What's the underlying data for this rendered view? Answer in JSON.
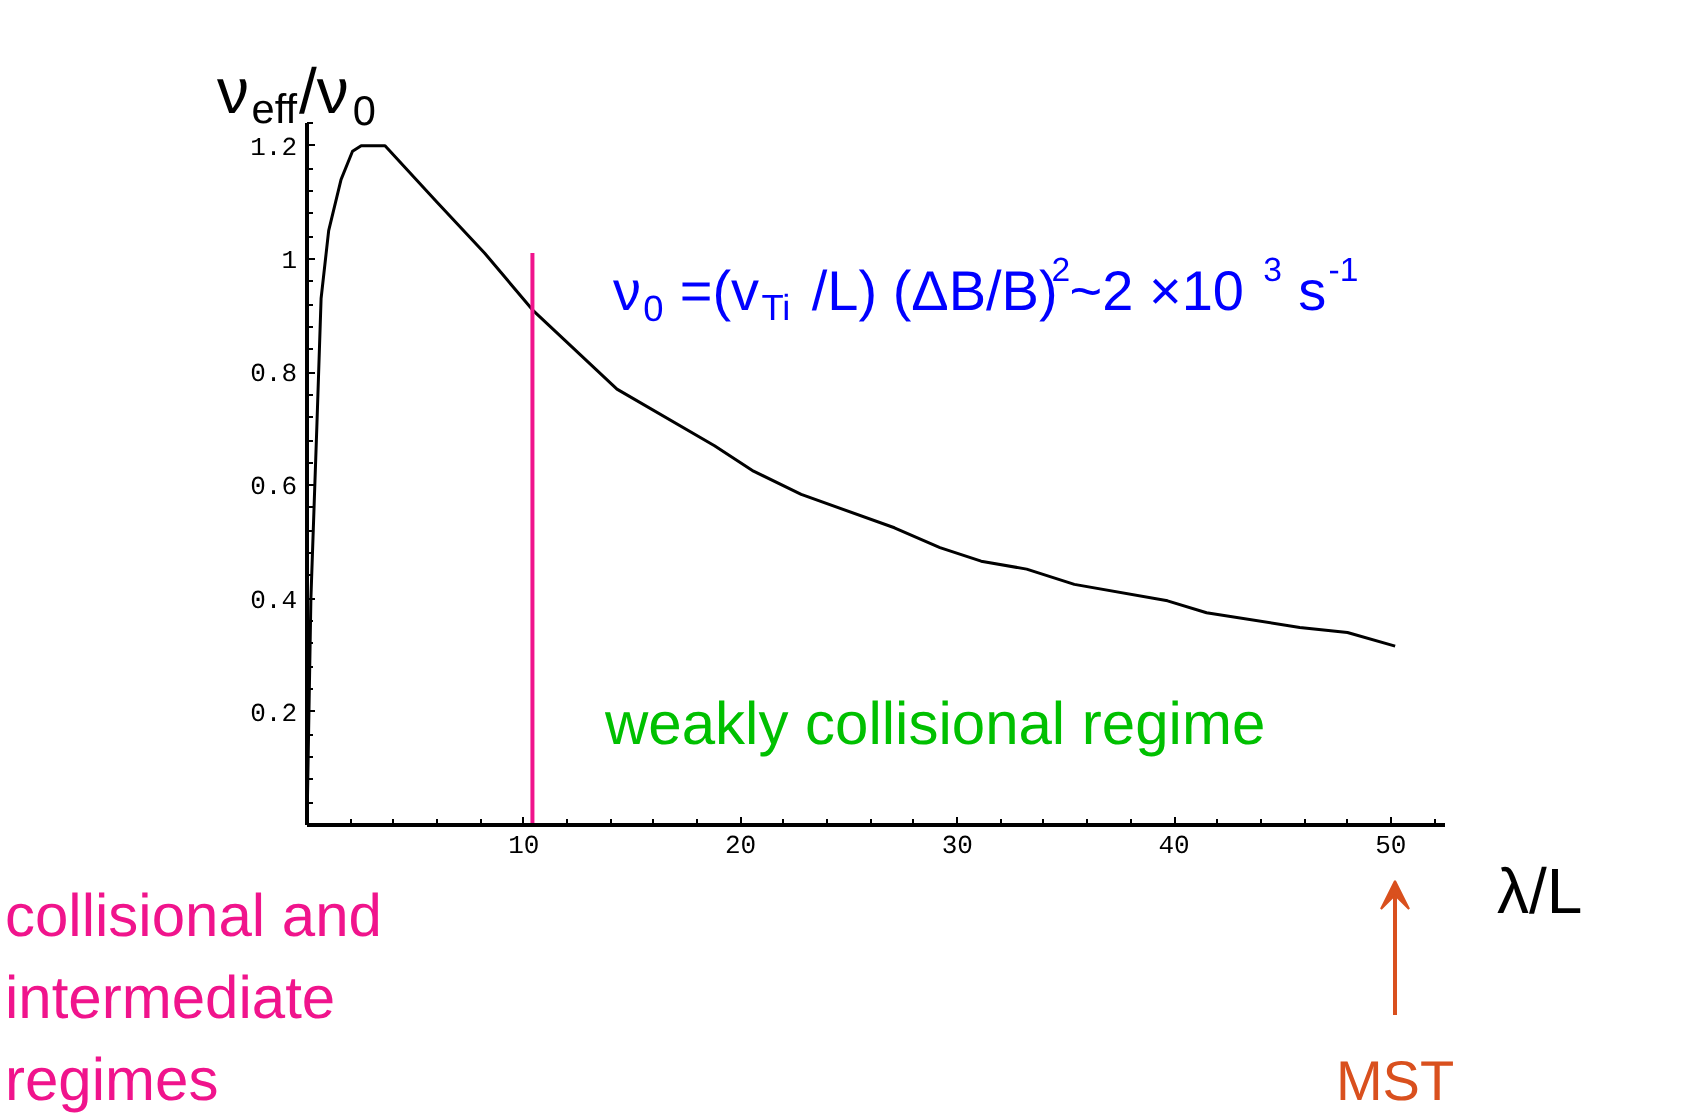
{
  "chart_data": {
    "type": "line",
    "ylabel": "ν$_{eff}$/ν$_{0}$",
    "xlabel": "λ/L",
    "x": [
      0,
      0.18,
      0.46,
      0.65,
      1.0,
      1.57,
      2.1,
      2.5,
      3.6,
      6.0,
      8.2,
      10.4,
      14.3,
      18.8,
      20.6,
      22.8,
      27.1,
      29.2,
      31.1,
      33.2,
      35.4,
      39.7,
      41.5,
      45.8,
      48.0,
      50.2
    ],
    "series": [
      {
        "color": "#000000",
        "values": [
          0,
          0.4,
          0.71,
          0.93,
          1.05,
          1.14,
          1.19,
          1.2,
          1.2,
          1.1,
          1.01,
          0.91,
          0.77,
          0.67,
          0.625,
          0.584,
          0.525,
          0.49,
          0.466,
          0.452,
          0.425,
          0.396,
          0.375,
          0.349,
          0.34,
          0.316
        ]
      }
    ],
    "xlim": [
      0,
      52.5
    ],
    "ylim": [
      0,
      1.24
    ],
    "xticks": [
      10,
      20,
      30,
      40,
      50
    ],
    "yticks": [
      0.2,
      0.4,
      0.6,
      0.8,
      1,
      1.2
    ],
    "grid": false,
    "marker": "none",
    "line_style": "solid",
    "ref_lines": [
      {
        "axis": "x",
        "value": 10.4,
        "label": "collisional and intermediate regimes",
        "color": "#f0148c"
      }
    ],
    "annotations": [
      "ν$_{0}$ =(v$_{Ti}$ /L) (ΔB/B)$^{2}$~2 ×10 $^{3}$ s$^{-1}$",
      "weakly collisional regime",
      "MST"
    ]
  }
}
